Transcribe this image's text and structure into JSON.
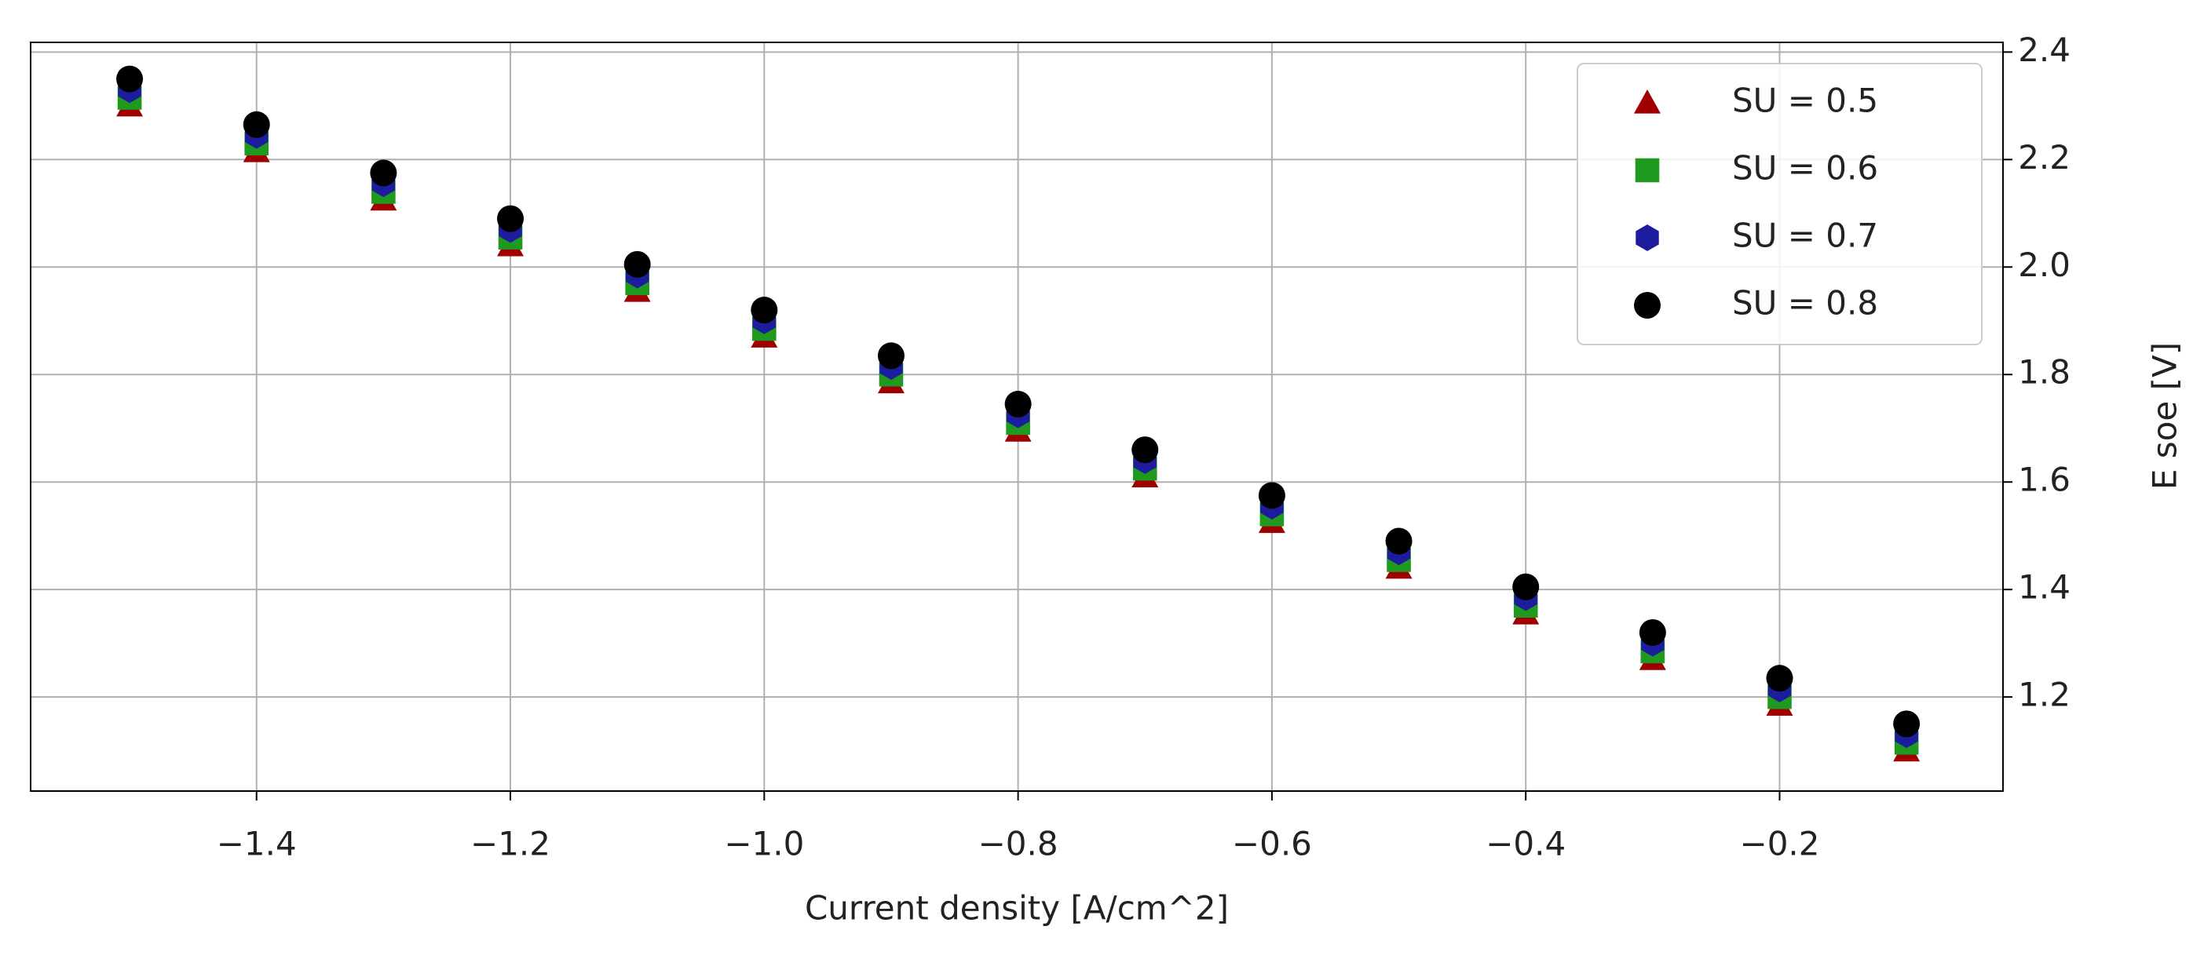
{
  "chart_data": {
    "type": "scatter",
    "xlabel": "Current density [A/cm^2]",
    "ylabel": "E soe [V]",
    "x": [
      -1.5,
      -1.4,
      -1.3,
      -1.2,
      -1.1,
      -1.0,
      -0.9,
      -0.8,
      -0.7,
      -0.6,
      -0.5,
      -0.4,
      -0.3,
      -0.2,
      -0.1
    ],
    "series": [
      {
        "name": "SU = 0.5",
        "color": "#a00000",
        "marker": "triangle",
        "values": [
          2.3,
          2.215,
          2.125,
          2.04,
          1.955,
          1.87,
          1.785,
          1.695,
          1.61,
          1.525,
          1.44,
          1.355,
          1.27,
          1.185,
          1.1
        ]
      },
      {
        "name": "SU = 0.6",
        "color": "#1f9a1f",
        "marker": "square",
        "values": [
          2.315,
          2.23,
          2.14,
          2.055,
          1.97,
          1.885,
          1.8,
          1.71,
          1.625,
          1.54,
          1.455,
          1.37,
          1.285,
          1.2,
          1.115
        ]
      },
      {
        "name": "SU = 0.7",
        "color": "#1c1c9c",
        "marker": "hexagon",
        "values": [
          2.33,
          2.245,
          2.155,
          2.07,
          1.985,
          1.9,
          1.815,
          1.725,
          1.64,
          1.555,
          1.47,
          1.385,
          1.3,
          1.215,
          1.13
        ]
      },
      {
        "name": "SU = 0.8",
        "color": "#000000",
        "marker": "circle",
        "values": [
          2.35,
          2.265,
          2.175,
          2.09,
          2.005,
          1.92,
          1.835,
          1.745,
          1.66,
          1.575,
          1.49,
          1.405,
          1.32,
          1.235,
          1.15
        ]
      }
    ],
    "xlim": [
      -1.578,
      -0.024
    ],
    "ylim": [
      1.025,
      2.418
    ],
    "xticks": [
      {
        "value": -1.4,
        "label": "−1.4"
      },
      {
        "value": -1.2,
        "label": "−1.2"
      },
      {
        "value": -1.0,
        "label": "−1.0"
      },
      {
        "value": -0.8,
        "label": "−0.8"
      },
      {
        "value": -0.6,
        "label": "−0.6"
      },
      {
        "value": -0.4,
        "label": "−0.4"
      },
      {
        "value": -0.2,
        "label": "−0.2"
      }
    ],
    "yticks": [
      1.2,
      1.4,
      1.6,
      1.8,
      {
        "value": 2.0,
        "label": "2.0"
      },
      2.2,
      2.4
    ],
    "grid": true,
    "y_axis_side": "right",
    "legend": "upper right"
  }
}
